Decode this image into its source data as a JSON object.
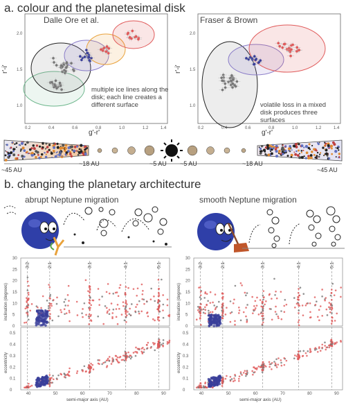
{
  "section_a": {
    "title": "a. colour and the planetesimal disk",
    "left_panel": {
      "subtitle": "Dalle Ore et al.",
      "note": "multiple ice lines along the disk; each line creates a different surface",
      "x_ticks": [
        "0.2",
        "0.4",
        "0.6",
        "0.8",
        "1.0",
        "1.2",
        "1.4"
      ],
      "y_ticks": [
        "1.0",
        "1.5",
        "2.0"
      ],
      "xlabel": "g'-r'",
      "ylabel": "r'-i'"
    },
    "right_panel": {
      "subtitle": "Fraser & Brown",
      "note": "volatile loss in a mixed disk produces three surfaces",
      "x_ticks": [
        "0.2",
        "0.4",
        "0.6",
        "0.8",
        "1.0",
        "1.2",
        "1.4"
      ],
      "y_ticks": [
        "1.0",
        "1.5",
        "2.0"
      ],
      "xlabel": "g'-r'",
      "ylabel": "r'-i'"
    },
    "distance_labels": [
      "~45 AU",
      "~18 AU",
      "~5 AU",
      "~5 AU",
      "~18 AU",
      "~45 AU"
    ]
  },
  "section_b": {
    "title": "b. changing the planetary architecture",
    "left_subtitle": "abrupt Neptune migration",
    "right_subtitle": "smooth Neptune migration",
    "resonances": [
      "3:2",
      "2:1",
      "3:1",
      "4:1",
      "5:1"
    ],
    "resonance_a": [
      39.4,
      47.7,
      62.5,
      75.8,
      88.0
    ],
    "x_ticks": [
      "40",
      "50",
      "60",
      "70",
      "80",
      "90"
    ],
    "incl_ticks": [
      "0",
      "5",
      "10",
      "15",
      "20",
      "25",
      "30"
    ],
    "ecc_ticks": [
      "0",
      "0.1",
      "0.2",
      "0.3",
      "0.4",
      "0.5"
    ],
    "incl_label": "inclination (degrees)",
    "ecc_label": "eccentricity",
    "xlabel": "semi-major axis (AU)"
  },
  "colors": {
    "red_points": "#e05a5a",
    "grey_points": "#777777",
    "blue_points": "#3a3f9a",
    "neptune": "#2f3fa8",
    "ellipse_black": "#222222",
    "ellipse_green": "#6ab58a",
    "ellipse_purple": "#8a7cc8",
    "ellipse_orange": "#e9a23b",
    "ellipse_red": "#e05a5a"
  }
}
